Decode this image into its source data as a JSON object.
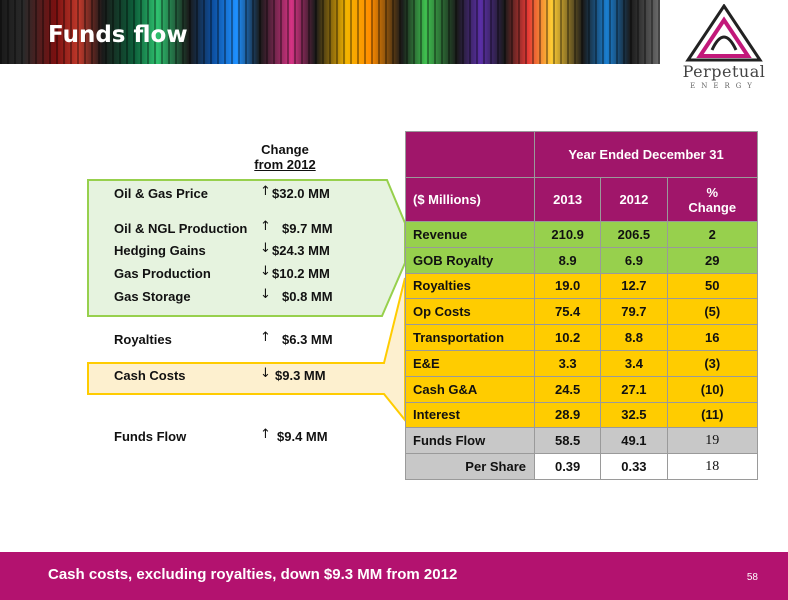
{
  "title": "Funds flow",
  "logo": {
    "name": "Perpetual",
    "sub": "ENERGY"
  },
  "change_header": {
    "line1": "Change",
    "line2": "from 2012"
  },
  "left_items": [
    {
      "label": "Oil & Gas Price",
      "direction": "up",
      "arrow": "↑",
      "value": "$32.0 MM"
    },
    {
      "label": "Oil & NGL Production",
      "direction": "up",
      "arrow": "↑",
      "value": "$9.7 MM"
    },
    {
      "label": "Hedging Gains",
      "direction": "down",
      "arrow": "↓",
      "value": "$24.3 MM"
    },
    {
      "label": "Gas Production",
      "direction": "down",
      "arrow": "↓",
      "value": "$10.2 MM"
    },
    {
      "label": "Gas Storage",
      "direction": "down",
      "arrow": "↓",
      "value": "$0.8 MM"
    },
    {
      "label": "Royalties",
      "direction": "up",
      "arrow": "↑",
      "value": "$6.3 MM"
    },
    {
      "label": "Cash Costs",
      "direction": "down",
      "arrow": "↓",
      "value": "$9.3 MM"
    },
    {
      "label": "Funds Flow",
      "direction": "up",
      "arrow": "↑",
      "value": "$9.4 MM"
    }
  ],
  "table": {
    "period_header": "Year Ended December 31",
    "columns": [
      "($ Millions)",
      "2013",
      "2012",
      "%",
      "Change"
    ],
    "rows": [
      {
        "label": "Revenue",
        "y2013": "210.9",
        "y2012": "206.5",
        "pct": "2"
      },
      {
        "label": "GOB Royalty",
        "y2013": "8.9",
        "y2012": "6.9",
        "pct": "29"
      },
      {
        "label": "Royalties",
        "y2013": "19.0",
        "y2012": "12.7",
        "pct": "50"
      },
      {
        "label": "Op Costs",
        "y2013": "75.4",
        "y2012": "79.7",
        "pct": "(5)"
      },
      {
        "label": "Transportation",
        "y2013": "10.2",
        "y2012": "8.8",
        "pct": "16"
      },
      {
        "label": "E&E",
        "y2013": "3.3",
        "y2012": "3.4",
        "pct": "(3)"
      },
      {
        "label": "Cash G&A",
        "y2013": "24.5",
        "y2012": "27.1",
        "pct": "(10)"
      },
      {
        "label": "Interest",
        "y2013": "28.9",
        "y2012": "32.5",
        "pct": "(11)"
      },
      {
        "label": "Funds Flow",
        "y2013": "58.5",
        "y2012": "49.1",
        "pct": "19"
      },
      {
        "label": "Per Share",
        "y2013": "0.39",
        "y2012": "0.33",
        "pct": "18"
      }
    ]
  },
  "footer": {
    "text": "Cash costs, excluding royalties, down $9.3 MM from 2012",
    "page": "58"
  },
  "colors": {
    "magenta": "#a0166a",
    "green": "#97d04d",
    "yellow": "#ffcc00",
    "grey": "#c8c8c8",
    "callout_green": "#e6f3df",
    "callout_yellow": "#fdf0cf"
  }
}
